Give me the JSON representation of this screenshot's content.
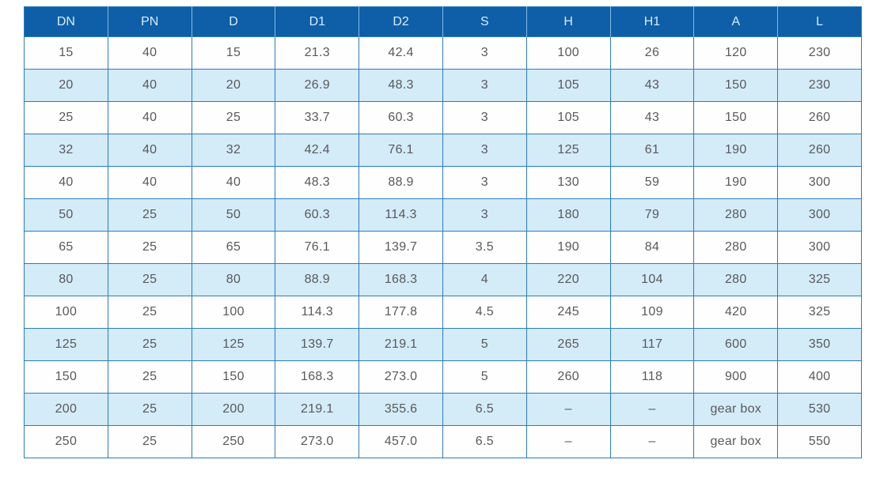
{
  "table": {
    "columns": [
      "DN",
      "PN",
      "D",
      "D1",
      "D2",
      "S",
      "H",
      "H1",
      "A",
      "L"
    ],
    "rows": [
      [
        "15",
        "40",
        "15",
        "21.3",
        "42.4",
        "3",
        "100",
        "26",
        "120",
        "230"
      ],
      [
        "20",
        "40",
        "20",
        "26.9",
        "48.3",
        "3",
        "105",
        "43",
        "150",
        "230"
      ],
      [
        "25",
        "40",
        "25",
        "33.7",
        "60.3",
        "3",
        "105",
        "43",
        "150",
        "260"
      ],
      [
        "32",
        "40",
        "32",
        "42.4",
        "76.1",
        "3",
        "125",
        "61",
        "190",
        "260"
      ],
      [
        "40",
        "40",
        "40",
        "48.3",
        "88.9",
        "3",
        "130",
        "59",
        "190",
        "300"
      ],
      [
        "50",
        "25",
        "50",
        "60.3",
        "114.3",
        "3",
        "180",
        "79",
        "280",
        "300"
      ],
      [
        "65",
        "25",
        "65",
        "76.1",
        "139.7",
        "3.5",
        "190",
        "84",
        "280",
        "300"
      ],
      [
        "80",
        "25",
        "80",
        "88.9",
        "168.3",
        "4",
        "220",
        "104",
        "280",
        "325"
      ],
      [
        "100",
        "25",
        "100",
        "114.3",
        "177.8",
        "4.5",
        "245",
        "109",
        "420",
        "325"
      ],
      [
        "125",
        "25",
        "125",
        "139.7",
        "219.1",
        "5",
        "265",
        "117",
        "600",
        "350"
      ],
      [
        "150",
        "25",
        "150",
        "168.3",
        "273.0",
        "5",
        "260",
        "118",
        "900",
        "400"
      ],
      [
        "200",
        "25",
        "200",
        "219.1",
        "355.6",
        "6.5",
        "–",
        "–",
        "gear box",
        "530"
      ],
      [
        "250",
        "25",
        "250",
        "273.0",
        "457.0",
        "6.5",
        "–",
        "–",
        "gear box",
        "550"
      ]
    ],
    "colors": {
      "header_bg": "#0e5fa8",
      "header_text": "#d9ecfa",
      "header_divider": "#84b9e2",
      "row_alt_bg": "#d4ebf8",
      "border": "#2a7cc0",
      "cell_text": "#58595b"
    }
  }
}
